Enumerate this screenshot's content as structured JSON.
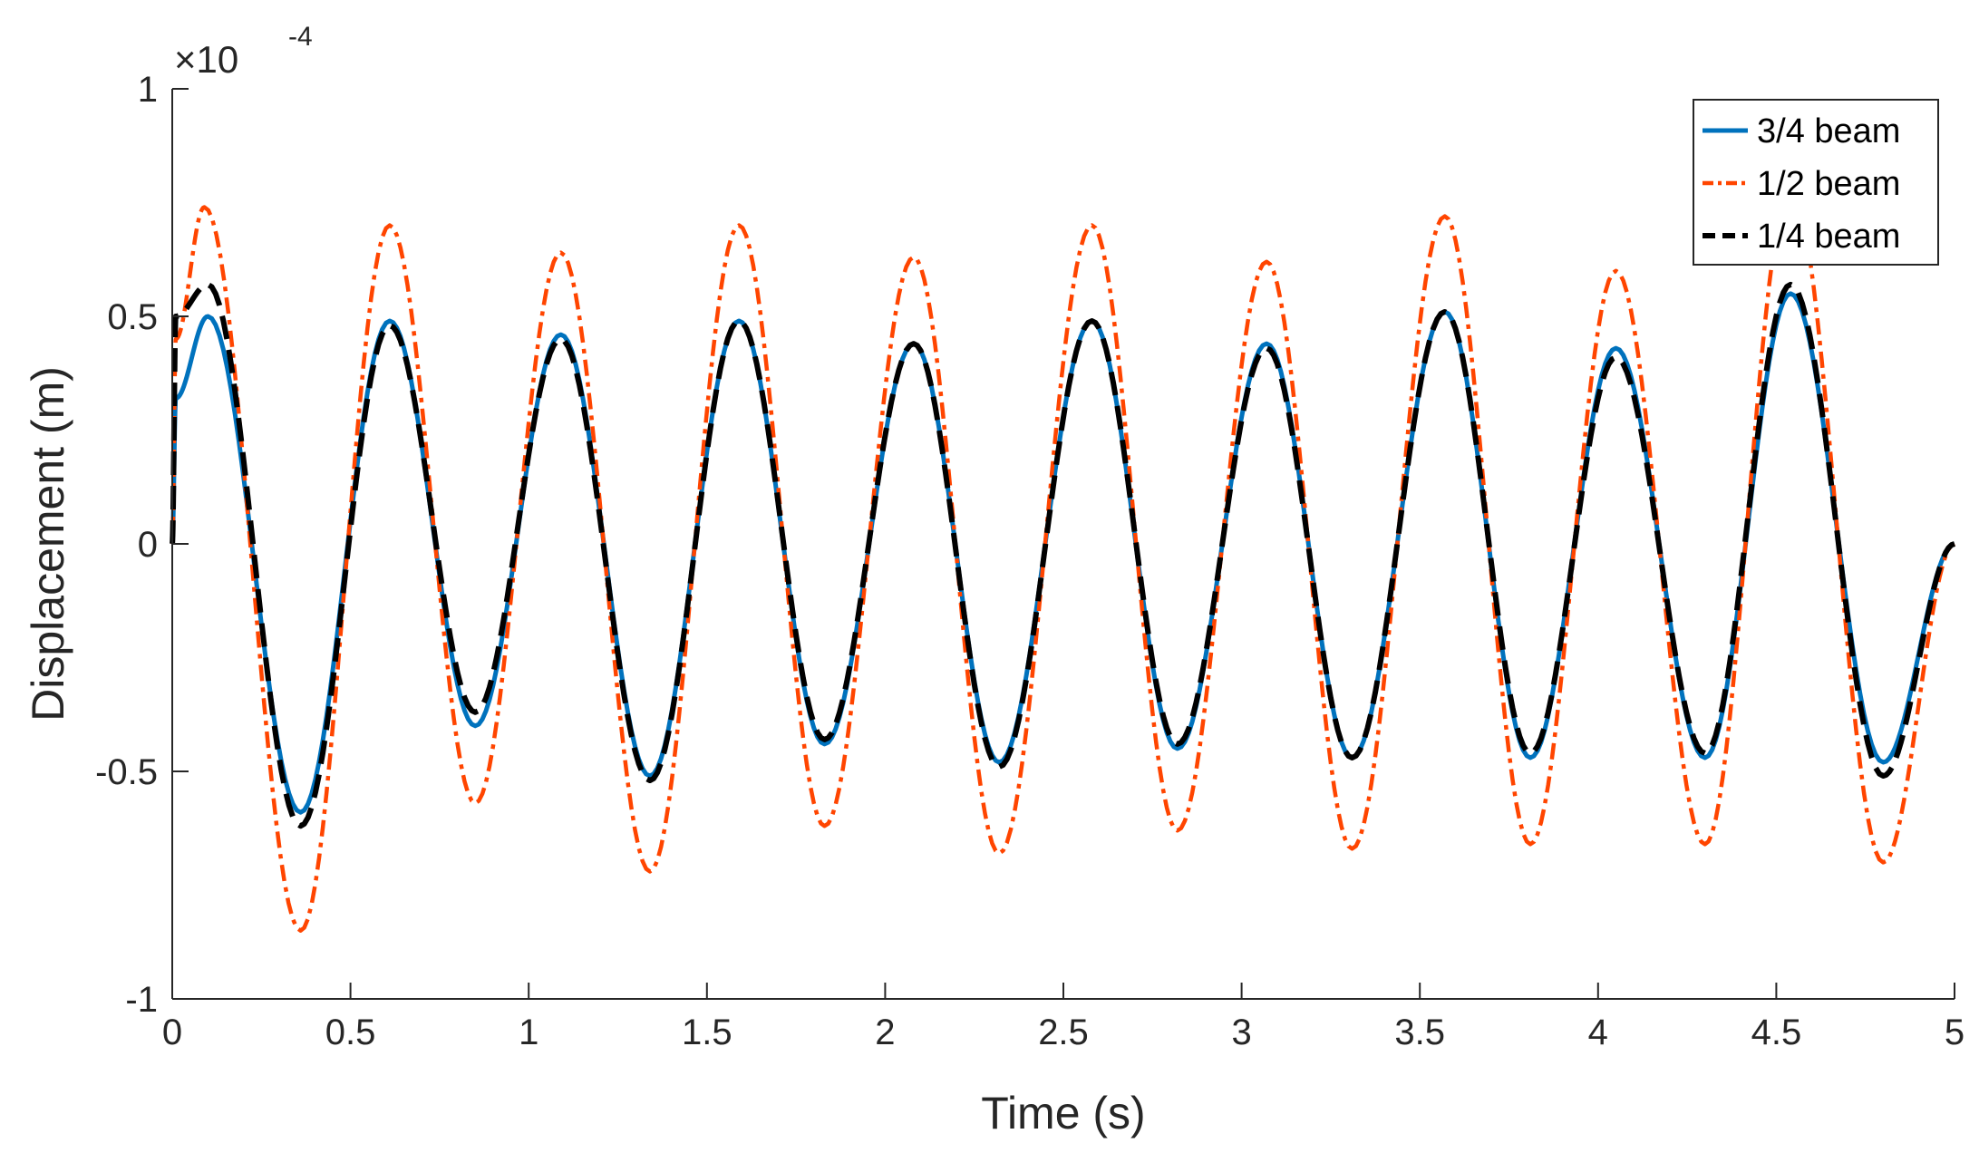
{
  "chart_data": {
    "type": "line",
    "xlabel": "Time (s)",
    "ylabel": "Displacement (m)",
    "y_exponent": {
      "base": "×10",
      "power": "-4"
    },
    "xlim": [
      0,
      5
    ],
    "ylim": [
      -1,
      1
    ],
    "x_ticks": [
      0,
      0.5,
      1,
      1.5,
      2,
      2.5,
      3,
      3.5,
      4,
      4.5,
      5
    ],
    "x_tick_labels": [
      "0",
      "0.5",
      "1",
      "1.5",
      "2",
      "2.5",
      "3",
      "3.5",
      "4",
      "4.5",
      "5"
    ],
    "y_ticks": [
      -1,
      -0.5,
      0,
      0.5,
      1
    ],
    "y_tick_labels": [
      "-1",
      "-0.5",
      "0",
      "0.5",
      "1"
    ],
    "grid": false,
    "legend_position": "top-right",
    "series": [
      {
        "name": "3/4 beam",
        "color": "#0072BD",
        "dash": "solid",
        "points": [
          [
            0.0,
            0.0
          ],
          [
            0.01,
            0.32
          ],
          [
            0.1,
            0.5
          ],
          [
            0.36,
            -0.59
          ],
          [
            0.61,
            0.49
          ],
          [
            0.85,
            -0.4
          ],
          [
            1.09,
            0.46
          ],
          [
            1.34,
            -0.51
          ],
          [
            1.59,
            0.49
          ],
          [
            1.83,
            -0.44
          ],
          [
            2.08,
            0.44
          ],
          [
            2.32,
            -0.48
          ],
          [
            2.58,
            0.49
          ],
          [
            2.82,
            -0.45
          ],
          [
            3.07,
            0.44
          ],
          [
            3.31,
            -0.47
          ],
          [
            3.57,
            0.51
          ],
          [
            3.81,
            -0.47
          ],
          [
            4.05,
            0.43
          ],
          [
            4.3,
            -0.47
          ],
          [
            4.54,
            0.55
          ],
          [
            4.8,
            -0.48
          ],
          [
            5.0,
            0.0
          ]
        ]
      },
      {
        "name": "1/2 beam",
        "color": "#FF4500",
        "dash": "dashdot",
        "points": [
          [
            0.0,
            0.0
          ],
          [
            0.01,
            0.45
          ],
          [
            0.09,
            0.74
          ],
          [
            0.36,
            -0.85
          ],
          [
            0.61,
            0.7
          ],
          [
            0.85,
            -0.57
          ],
          [
            1.09,
            0.64
          ],
          [
            1.34,
            -0.72
          ],
          [
            1.59,
            0.7
          ],
          [
            1.83,
            -0.62
          ],
          [
            2.08,
            0.63
          ],
          [
            2.32,
            -0.68
          ],
          [
            2.58,
            0.7
          ],
          [
            2.82,
            -0.63
          ],
          [
            3.07,
            0.62
          ],
          [
            3.31,
            -0.67
          ],
          [
            3.57,
            0.72
          ],
          [
            3.81,
            -0.66
          ],
          [
            4.05,
            0.6
          ],
          [
            4.3,
            -0.66
          ],
          [
            4.54,
            0.78
          ],
          [
            4.8,
            -0.7
          ],
          [
            5.0,
            0.0
          ]
        ]
      },
      {
        "name": "1/4 beam",
        "color": "#000000",
        "dash": "dashed",
        "points": [
          [
            0.0,
            0.0
          ],
          [
            0.01,
            0.5
          ],
          [
            0.1,
            0.57
          ],
          [
            0.36,
            -0.62
          ],
          [
            0.61,
            0.48
          ],
          [
            0.85,
            -0.37
          ],
          [
            1.09,
            0.45
          ],
          [
            1.34,
            -0.52
          ],
          [
            1.59,
            0.49
          ],
          [
            1.83,
            -0.43
          ],
          [
            2.08,
            0.44
          ],
          [
            2.32,
            -0.49
          ],
          [
            2.58,
            0.49
          ],
          [
            2.82,
            -0.44
          ],
          [
            3.07,
            0.43
          ],
          [
            3.31,
            -0.47
          ],
          [
            3.57,
            0.51
          ],
          [
            3.81,
            -0.46
          ],
          [
            4.05,
            0.41
          ],
          [
            4.3,
            -0.46
          ],
          [
            4.54,
            0.57
          ],
          [
            4.8,
            -0.51
          ],
          [
            5.0,
            0.0
          ]
        ]
      }
    ]
  }
}
